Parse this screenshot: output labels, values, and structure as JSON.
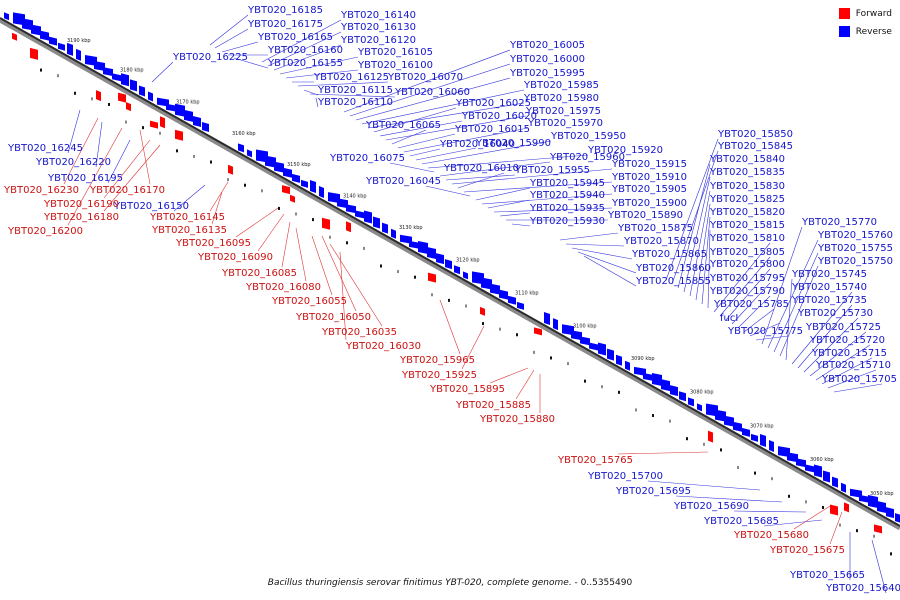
{
  "legend": {
    "forward_label": "Forward",
    "reverse_label": "Reverse",
    "forward_color": "#ff0000",
    "reverse_color": "#0000ff"
  },
  "caption": {
    "organism": "Bacillus thuringiensis serovar finitimus YBT-020, complete genome.",
    "range": " - 0..5355490"
  },
  "ticks": [
    "3190 kbp",
    "3180 kbp",
    "3170 kbp",
    "3160 kbp",
    "3150 kbp",
    "3140 kbp",
    "3130 kbp",
    "3120 kbp",
    "3110 kbp",
    "3100 kbp",
    "3090 kbp",
    "3080 kbp",
    "3070 kbp",
    "3060 kbp",
    "3050 kbp"
  ],
  "labels": {
    "reverse": [
      "YBT020_16185",
      "YBT020_16175",
      "YBT020_16165",
      "YBT020_16160",
      "YBT020_16155",
      "YBT020_16225",
      "YBT020_16140",
      "YBT020_16130",
      "YBT020_16120",
      "YBT020_16105",
      "YBT020_16100",
      "YBT020_16125",
      "YBT020_16070",
      "YBT020_16115",
      "YBT020_16060",
      "YBT020_16110",
      "YBT020_16005",
      "YBT020_16000",
      "YBT020_15995",
      "YBT020_15985",
      "YBT020_15980",
      "YBT020_16025",
      "YBT020_16020",
      "YBT020_15975",
      "YBT020_16065",
      "YBT020_16015",
      "YBT020_15970",
      "YBT020_16040",
      "YBT020_15990",
      "YBT020_15950",
      "YBT020_15920",
      "YBT020_16075",
      "YBT020_15960",
      "YBT020_15955",
      "YBT020_15915",
      "YBT020_16010",
      "YBT020_15910",
      "YBT020_16045",
      "YBT020_15945",
      "YBT020_15905",
      "YBT020_15940",
      "YBT020_15900",
      "YBT020_15935",
      "YBT020_15890",
      "YBT020_15930",
      "YBT020_15875",
      "YBT020_15870",
      "YBT020_15865",
      "YBT020_15860",
      "YBT020_15855",
      "YBT020_15850",
      "YBT020_15845",
      "YBT020_15840",
      "YBT020_15835",
      "YBT020_15830",
      "YBT020_15825",
      "YBT020_15820",
      "YBT020_15815",
      "YBT020_15810",
      "YBT020_15805",
      "YBT020_15800",
      "YBT020_15795",
      "YBT020_15790",
      "YBT020_15785",
      "fucI",
      "YBT020_15775",
      "YBT020_15770",
      "YBT020_15760",
      "YBT020_15755",
      "YBT020_15750",
      "YBT020_15745",
      "YBT020_15740",
      "YBT020_15735",
      "YBT020_15730",
      "YBT020_15725",
      "YBT020_15720",
      "YBT020_15715",
      "YBT020_15710",
      "YBT020_15705",
      "YBT020_16245",
      "YBT020_16220",
      "YBT020_16195",
      "YBT020_16150",
      "YBT020_15700",
      "YBT020_15695",
      "YBT020_15690",
      "YBT020_15685",
      "YBT020_15665",
      "YBT020_15640"
    ],
    "forward": [
      "YBT020_16230",
      "YBT020_16190",
      "YBT020_16180",
      "YBT020_16200",
      "YBT020_16170",
      "YBT020_16145",
      "YBT020_16135",
      "YBT020_16095",
      "YBT020_16090",
      "YBT020_16085",
      "YBT020_16080",
      "YBT020_16055",
      "YBT020_16050",
      "YBT020_16035",
      "YBT020_16030",
      "YBT020_15965",
      "YBT020_15925",
      "YBT020_15895",
      "YBT020_15885",
      "YBT020_15880",
      "YBT020_15765",
      "YBT020_15680",
      "YBT020_15675"
    ]
  }
}
